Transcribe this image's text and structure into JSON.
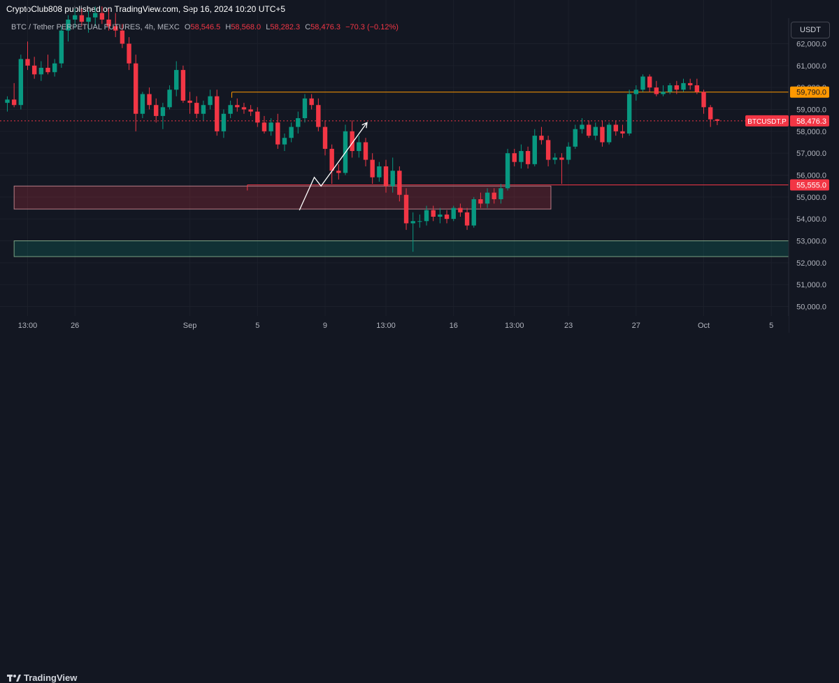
{
  "header": {
    "published": "CryptoClub808 published on TradingView.com, Sep 16, 2024 10:20 UTC+5"
  },
  "legend": {
    "symbol": "BTC / Tether PERPETUAL FUTURES, 4h, MEXC",
    "open_label": "O",
    "open": "58,546.5",
    "high_label": "H",
    "high": "58,568.0",
    "low_label": "L",
    "low": "58,282.3",
    "close_label": "C",
    "close": "58,476.3",
    "change": "−70.3 (−0.12%)"
  },
  "currency_button": "USDT",
  "footer": {
    "brand": "TradingView"
  },
  "colors": {
    "background": "#131722",
    "up": "#089981",
    "down": "#f23645",
    "orange": "#ff9800",
    "text": "#b2b5be"
  },
  "chart_data": {
    "type": "candlestick",
    "y_ticks": [
      "62,000.0",
      "61,000.0",
      "60,000.0",
      "59,000.0",
      "58,000.0",
      "57,000.0",
      "56,000.0",
      "55,000.0",
      "54,000.0",
      "53,000.0",
      "52,000.0",
      "51,000.0",
      "50,000.0"
    ],
    "y_tick_values": [
      62000,
      61000,
      60000,
      59000,
      58000,
      57000,
      56000,
      55000,
      54000,
      53000,
      52000,
      51000,
      50000
    ],
    "ylim": [
      49600,
      63100
    ],
    "x_ticks": [
      "13:00",
      "26",
      "Sep",
      "5",
      "9",
      "13:00",
      "16",
      "13:00",
      "23",
      "27",
      "Oct",
      "5"
    ],
    "x_tick_values": [
      3,
      10,
      27,
      37,
      47,
      56,
      66,
      75,
      83,
      93,
      103,
      113
    ],
    "xlim": [
      0,
      115.6
    ],
    "price_labels": [
      {
        "text": "59,790.0",
        "value": 59790,
        "color": "#ff9800"
      },
      {
        "text": "58,476.3",
        "value": 58476.3,
        "color": "#f23645",
        "tag": "BTCUSDT.P"
      },
      {
        "text": "55,555.0",
        "value": 55555,
        "color": "#f23645"
      }
    ],
    "horizontal_lines": [
      {
        "value": 59790,
        "x_start": 33.2,
        "color": "#ff9800"
      },
      {
        "value": 55555,
        "x_start": 35.5,
        "color": "#f23645"
      }
    ],
    "zones": [
      {
        "top": 55500,
        "bottom": 54450,
        "x_start": 1,
        "x_end": 80.4,
        "color": "#f23645"
      },
      {
        "top": 53000,
        "bottom": 52280,
        "x_start": 1,
        "x_end": 115.8,
        "color": "#089981"
      }
    ],
    "arrow_path": [
      {
        "x": 43.2,
        "y": 54400
      },
      {
        "x": 45.4,
        "y": 55900
      },
      {
        "x": 46.4,
        "y": 55500
      },
      {
        "x": 53.2,
        "y": 58400
      }
    ],
    "candles": [
      {
        "o": 59300,
        "h": 59600,
        "l": 58900,
        "c": 59450
      },
      {
        "o": 59450,
        "h": 60200,
        "l": 59100,
        "c": 59200
      },
      {
        "o": 59200,
        "h": 61500,
        "l": 59000,
        "c": 61300
      },
      {
        "o": 61300,
        "h": 62100,
        "l": 60800,
        "c": 61000
      },
      {
        "o": 61000,
        "h": 61400,
        "l": 60400,
        "c": 60600
      },
      {
        "o": 60600,
        "h": 61200,
        "l": 60300,
        "c": 60900
      },
      {
        "o": 60900,
        "h": 61500,
        "l": 60600,
        "c": 60700
      },
      {
        "o": 60700,
        "h": 61300,
        "l": 60500,
        "c": 61100
      },
      {
        "o": 61100,
        "h": 62800,
        "l": 60900,
        "c": 62600
      },
      {
        "o": 62600,
        "h": 63300,
        "l": 62100,
        "c": 63100
      },
      {
        "o": 63100,
        "h": 63600,
        "l": 62700,
        "c": 63300
      },
      {
        "o": 63300,
        "h": 63600,
        "l": 62800,
        "c": 63000
      },
      {
        "o": 63000,
        "h": 63500,
        "l": 62500,
        "c": 63200
      },
      {
        "o": 63200,
        "h": 63700,
        "l": 62800,
        "c": 63400
      },
      {
        "o": 63400,
        "h": 63700,
        "l": 62900,
        "c": 63100
      },
      {
        "o": 63100,
        "h": 63600,
        "l": 62600,
        "c": 62800
      },
      {
        "o": 62800,
        "h": 63400,
        "l": 62300,
        "c": 62600
      },
      {
        "o": 62600,
        "h": 62900,
        "l": 61800,
        "c": 62000
      },
      {
        "o": 62000,
        "h": 62300,
        "l": 60800,
        "c": 61100
      },
      {
        "o": 61100,
        "h": 61500,
        "l": 58000,
        "c": 58800
      },
      {
        "o": 58800,
        "h": 59800,
        "l": 58600,
        "c": 59700
      },
      {
        "o": 59700,
        "h": 60000,
        "l": 59000,
        "c": 59200
      },
      {
        "o": 59200,
        "h": 59500,
        "l": 58400,
        "c": 58700
      },
      {
        "o": 58700,
        "h": 59300,
        "l": 58100,
        "c": 59100
      },
      {
        "o": 59100,
        "h": 60100,
        "l": 59000,
        "c": 59900
      },
      {
        "o": 59900,
        "h": 61200,
        "l": 59600,
        "c": 60800
      },
      {
        "o": 60800,
        "h": 61000,
        "l": 59300,
        "c": 59400
      },
      {
        "o": 59400,
        "h": 59800,
        "l": 58800,
        "c": 59300
      },
      {
        "o": 59300,
        "h": 59600,
        "l": 58600,
        "c": 58800
      },
      {
        "o": 58800,
        "h": 59400,
        "l": 58500,
        "c": 59200
      },
      {
        "o": 59200,
        "h": 59900,
        "l": 59000,
        "c": 59600
      },
      {
        "o": 59600,
        "h": 59900,
        "l": 57800,
        "c": 58000
      },
      {
        "o": 58000,
        "h": 59000,
        "l": 57700,
        "c": 58800
      },
      {
        "o": 58800,
        "h": 59400,
        "l": 58600,
        "c": 59200
      },
      {
        "o": 59200,
        "h": 59500,
        "l": 58900,
        "c": 59100
      },
      {
        "o": 59100,
        "h": 59300,
        "l": 58800,
        "c": 59000
      },
      {
        "o": 59000,
        "h": 59200,
        "l": 58700,
        "c": 58900
      },
      {
        "o": 58900,
        "h": 59100,
        "l": 58200,
        "c": 58400
      },
      {
        "o": 58400,
        "h": 58700,
        "l": 57900,
        "c": 58000
      },
      {
        "o": 58000,
        "h": 58600,
        "l": 57800,
        "c": 58400
      },
      {
        "o": 58400,
        "h": 58800,
        "l": 57200,
        "c": 57400
      },
      {
        "o": 57400,
        "h": 57900,
        "l": 57100,
        "c": 57700
      },
      {
        "o": 57700,
        "h": 58400,
        "l": 57500,
        "c": 58200
      },
      {
        "o": 58200,
        "h": 58900,
        "l": 57900,
        "c": 58600
      },
      {
        "o": 58600,
        "h": 59700,
        "l": 58400,
        "c": 59500
      },
      {
        "o": 59500,
        "h": 59700,
        "l": 59000,
        "c": 59200
      },
      {
        "o": 59200,
        "h": 59500,
        "l": 58000,
        "c": 58200
      },
      {
        "o": 58200,
        "h": 58500,
        "l": 56900,
        "c": 57200
      },
      {
        "o": 57200,
        "h": 57400,
        "l": 55600,
        "c": 56200
      },
      {
        "o": 56200,
        "h": 56500,
        "l": 55800,
        "c": 56100
      },
      {
        "o": 56100,
        "h": 58300,
        "l": 56000,
        "c": 58000
      },
      {
        "o": 58000,
        "h": 58500,
        "l": 56800,
        "c": 57100
      },
      {
        "o": 57100,
        "h": 57800,
        "l": 56800,
        "c": 57500
      },
      {
        "o": 57500,
        "h": 57700,
        "l": 56400,
        "c": 56700
      },
      {
        "o": 56700,
        "h": 57000,
        "l": 55600,
        "c": 55900
      },
      {
        "o": 55900,
        "h": 56600,
        "l": 55700,
        "c": 56400
      },
      {
        "o": 56400,
        "h": 56700,
        "l": 55200,
        "c": 55500
      },
      {
        "o": 55500,
        "h": 56800,
        "l": 55200,
        "c": 56200
      },
      {
        "o": 56200,
        "h": 56400,
        "l": 54800,
        "c": 55100
      },
      {
        "o": 55100,
        "h": 55400,
        "l": 53500,
        "c": 53800
      },
      {
        "o": 53800,
        "h": 54300,
        "l": 52500,
        "c": 53900
      },
      {
        "o": 53900,
        "h": 54200,
        "l": 53600,
        "c": 53900
      },
      {
        "o": 53900,
        "h": 54600,
        "l": 53700,
        "c": 54400
      },
      {
        "o": 54400,
        "h": 54600,
        "l": 53900,
        "c": 54100
      },
      {
        "o": 54100,
        "h": 54500,
        "l": 53800,
        "c": 54200
      },
      {
        "o": 54200,
        "h": 54400,
        "l": 53800,
        "c": 54000
      },
      {
        "o": 54000,
        "h": 54600,
        "l": 53900,
        "c": 54500
      },
      {
        "o": 54500,
        "h": 54700,
        "l": 54100,
        "c": 54300
      },
      {
        "o": 54300,
        "h": 54500,
        "l": 53500,
        "c": 53700
      },
      {
        "o": 53700,
        "h": 55000,
        "l": 53600,
        "c": 54900
      },
      {
        "o": 54900,
        "h": 55200,
        "l": 54500,
        "c": 54700
      },
      {
        "o": 54700,
        "h": 55400,
        "l": 54500,
        "c": 55200
      },
      {
        "o": 55200,
        "h": 55400,
        "l": 54700,
        "c": 54900
      },
      {
        "o": 54900,
        "h": 55600,
        "l": 54700,
        "c": 55400
      },
      {
        "o": 55400,
        "h": 57200,
        "l": 55300,
        "c": 57000
      },
      {
        "o": 57000,
        "h": 57200,
        "l": 56400,
        "c": 56600
      },
      {
        "o": 56600,
        "h": 57400,
        "l": 56300,
        "c": 57100
      },
      {
        "o": 57100,
        "h": 57300,
        "l": 56300,
        "c": 56500
      },
      {
        "o": 56500,
        "h": 58100,
        "l": 56400,
        "c": 57800
      },
      {
        "o": 57800,
        "h": 58200,
        "l": 57400,
        "c": 57600
      },
      {
        "o": 57600,
        "h": 57800,
        "l": 56400,
        "c": 56700
      },
      {
        "o": 56700,
        "h": 57000,
        "l": 56500,
        "c": 56800
      },
      {
        "o": 56800,
        "h": 57000,
        "l": 55600,
        "c": 56700
      },
      {
        "o": 56700,
        "h": 57500,
        "l": 56500,
        "c": 57300
      },
      {
        "o": 57300,
        "h": 58300,
        "l": 57200,
        "c": 58100
      },
      {
        "o": 58100,
        "h": 58600,
        "l": 57900,
        "c": 58300
      },
      {
        "o": 58300,
        "h": 58500,
        "l": 57700,
        "c": 57800
      },
      {
        "o": 57800,
        "h": 58400,
        "l": 57600,
        "c": 58200
      },
      {
        "o": 58200,
        "h": 58500,
        "l": 57300,
        "c": 57500
      },
      {
        "o": 57500,
        "h": 58400,
        "l": 57400,
        "c": 58300
      },
      {
        "o": 58300,
        "h": 58500,
        "l": 57800,
        "c": 58000
      },
      {
        "o": 58000,
        "h": 58300,
        "l": 57700,
        "c": 57900
      },
      {
        "o": 57900,
        "h": 59900,
        "l": 57800,
        "c": 59700
      },
      {
        "o": 59700,
        "h": 60100,
        "l": 59400,
        "c": 59900
      },
      {
        "o": 59900,
        "h": 60600,
        "l": 59800,
        "c": 60500
      },
      {
        "o": 60500,
        "h": 60600,
        "l": 59800,
        "c": 60000
      },
      {
        "o": 60000,
        "h": 60300,
        "l": 59600,
        "c": 59700
      },
      {
        "o": 59700,
        "h": 60100,
        "l": 59600,
        "c": 59800
      },
      {
        "o": 59800,
        "h": 60200,
        "l": 59700,
        "c": 60100
      },
      {
        "o": 60100,
        "h": 60300,
        "l": 59700,
        "c": 59900
      },
      {
        "o": 59900,
        "h": 60400,
        "l": 59800,
        "c": 60200
      },
      {
        "o": 60200,
        "h": 60400,
        "l": 59900,
        "c": 60100
      },
      {
        "o": 60100,
        "h": 60400,
        "l": 59700,
        "c": 59800
      },
      {
        "o": 59800,
        "h": 59900,
        "l": 58800,
        "c": 59100
      },
      {
        "o": 59100,
        "h": 59200,
        "l": 58200,
        "c": 58546.5
      },
      {
        "o": 58546.5,
        "h": 58568,
        "l": 58282.3,
        "c": 58476.3
      }
    ]
  }
}
